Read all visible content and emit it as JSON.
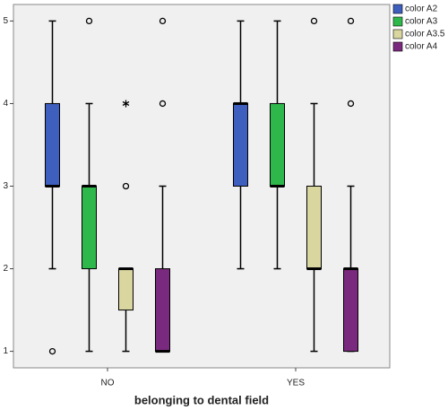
{
  "chart_data": {
    "type": "box",
    "x_label": "belonging to dental field",
    "categories": [
      "NO",
      "YES"
    ],
    "ylim": [
      0.8,
      5.2
    ],
    "yticks": [
      1,
      2,
      3,
      4,
      5
    ],
    "legend": "top-right-outside",
    "series": [
      {
        "name": "color A2",
        "color": "#3f5fbf",
        "boxes": [
          {
            "min": 2,
            "q1": 3,
            "median": 3,
            "q3": 4,
            "max": 5,
            "outliers": [
              1
            ]
          },
          {
            "min": 2,
            "q1": 3,
            "median": 4,
            "q3": 4,
            "max": 5
          }
        ]
      },
      {
        "name": "color A3",
        "color": "#2eb84c",
        "boxes": [
          {
            "min": 1,
            "q1": 2,
            "median": 3,
            "q3": 3,
            "max": 4,
            "outliers": [
              5
            ]
          },
          {
            "min": 2,
            "q1": 3,
            "median": 3,
            "q3": 4,
            "max": 5
          }
        ]
      },
      {
        "name": "color A3.5",
        "color": "#d9d6a0",
        "boxes": [
          {
            "min": 1,
            "q1": 1.5,
            "median": 2,
            "q3": 2,
            "max": 2,
            "outliers": [
              3
            ],
            "extremes": [
              4
            ]
          },
          {
            "min": 1,
            "q1": 2,
            "median": 2,
            "q3": 3,
            "max": 4,
            "outliers": [
              5
            ]
          }
        ]
      },
      {
        "name": "color A4",
        "color": "#7a2a7e",
        "boxes": [
          {
            "min": 1,
            "q1": 1,
            "median": 1,
            "q3": 2,
            "max": 3,
            "outliers": [
              4,
              5
            ]
          },
          {
            "min": 1,
            "q1": 1,
            "median": 2,
            "q3": 2,
            "max": 3,
            "outliers": [
              4,
              5
            ]
          }
        ]
      }
    ]
  }
}
